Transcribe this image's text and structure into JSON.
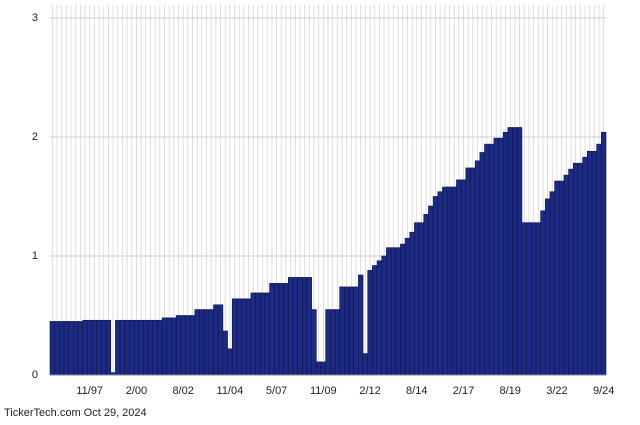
{
  "chart_data": {
    "type": "bar",
    "footer": "TickerTech.com Oct 29, 2024",
    "categories": [
      null,
      null,
      null,
      null,
      null,
      null,
      null,
      null,
      "11/97",
      null,
      null,
      null,
      null,
      null,
      null,
      null,
      null,
      null,
      "2/00",
      null,
      null,
      null,
      null,
      null,
      null,
      null,
      null,
      null,
      "8/02",
      null,
      null,
      null,
      null,
      null,
      null,
      null,
      null,
      null,
      "11/04",
      null,
      null,
      null,
      null,
      null,
      null,
      null,
      null,
      null,
      "5/07",
      null,
      null,
      null,
      null,
      null,
      null,
      null,
      null,
      null,
      "11/09",
      null,
      null,
      null,
      null,
      null,
      null,
      null,
      null,
      null,
      "2/12",
      null,
      null,
      null,
      null,
      null,
      null,
      null,
      null,
      null,
      "8/14",
      null,
      null,
      null,
      null,
      null,
      null,
      null,
      null,
      null,
      "2/17",
      null,
      null,
      null,
      null,
      null,
      null,
      null,
      null,
      null,
      "8/19",
      null,
      null,
      null,
      null,
      null,
      null,
      null,
      null,
      null,
      "3/22",
      null,
      null,
      null,
      null,
      null,
      null,
      null,
      null,
      null,
      "9/24"
    ],
    "values": [
      0.45,
      0.45,
      0.45,
      0.45,
      0.45,
      0.45,
      0.45,
      0.46,
      0.46,
      0.46,
      0.46,
      0.46,
      0.46,
      0.02,
      0.46,
      0.46,
      0.46,
      0.46,
      0.46,
      0.46,
      0.46,
      0.46,
      0.46,
      0.46,
      0.48,
      0.48,
      0.48,
      0.5,
      0.5,
      0.5,
      0.5,
      0.55,
      0.55,
      0.55,
      0.55,
      0.59,
      0.59,
      0.37,
      0.22,
      0.64,
      0.64,
      0.64,
      0.64,
      0.69,
      0.69,
      0.69,
      0.69,
      0.77,
      0.77,
      0.77,
      0.77,
      0.82,
      0.82,
      0.82,
      0.82,
      0.82,
      0.55,
      0.11,
      0.11,
      0.55,
      0.55,
      0.55,
      0.74,
      0.74,
      0.74,
      0.74,
      0.84,
      0.18,
      0.88,
      0.92,
      0.96,
      1.0,
      1.07,
      1.07,
      1.07,
      1.1,
      1.15,
      1.2,
      1.28,
      1.28,
      1.35,
      1.42,
      1.5,
      1.54,
      1.58,
      1.58,
      1.58,
      1.64,
      1.64,
      1.74,
      1.74,
      1.8,
      1.87,
      1.94,
      1.94,
      1.99,
      1.99,
      2.04,
      2.08,
      2.08,
      2.08,
      1.28,
      1.28,
      1.28,
      1.28,
      1.38,
      1.48,
      1.54,
      1.63,
      1.63,
      1.68,
      1.73,
      1.78,
      1.78,
      1.83,
      1.88,
      1.88,
      1.94,
      2.04
    ],
    "color": "#1c2a82",
    "ylim": [
      0,
      3
    ],
    "yticks": [
      0,
      1,
      2,
      3
    ],
    "grid": true
  }
}
